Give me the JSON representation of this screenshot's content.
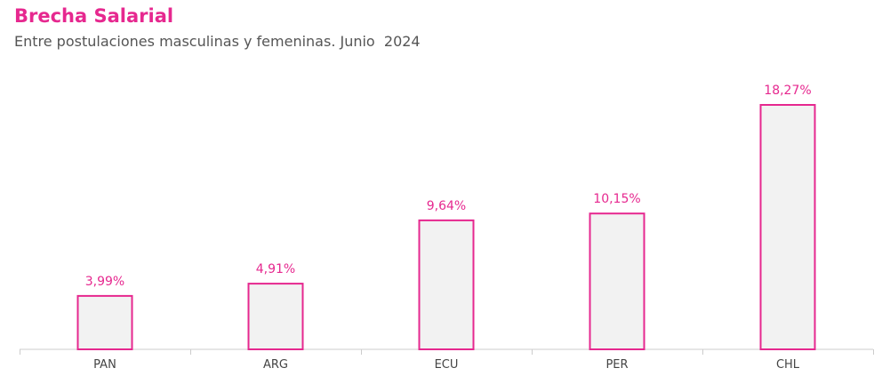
{
  "chart_data": {
    "type": "bar",
    "title": "Brecha Salarial",
    "subtitle": "Entre postulaciones masculinas y femeninas. Junio  2024",
    "categories": [
      "PAN",
      "ARG",
      "ECU",
      "PER",
      "CHL"
    ],
    "values": [
      3.99,
      4.91,
      9.64,
      10.15,
      18.27
    ],
    "data_labels": [
      "3,99%",
      "4,91%",
      "9,64%",
      "10,15%",
      "18,27%"
    ],
    "xlabel": "",
    "ylabel": "",
    "ylim": [
      0,
      20
    ],
    "grid": false,
    "legend": "none",
    "colors": {
      "accent": "#e6288f",
      "bar_fill": "#f2f2f2",
      "axis": "#cccccc",
      "tick_text": "#444444",
      "subtitle_text": "#555555"
    }
  }
}
